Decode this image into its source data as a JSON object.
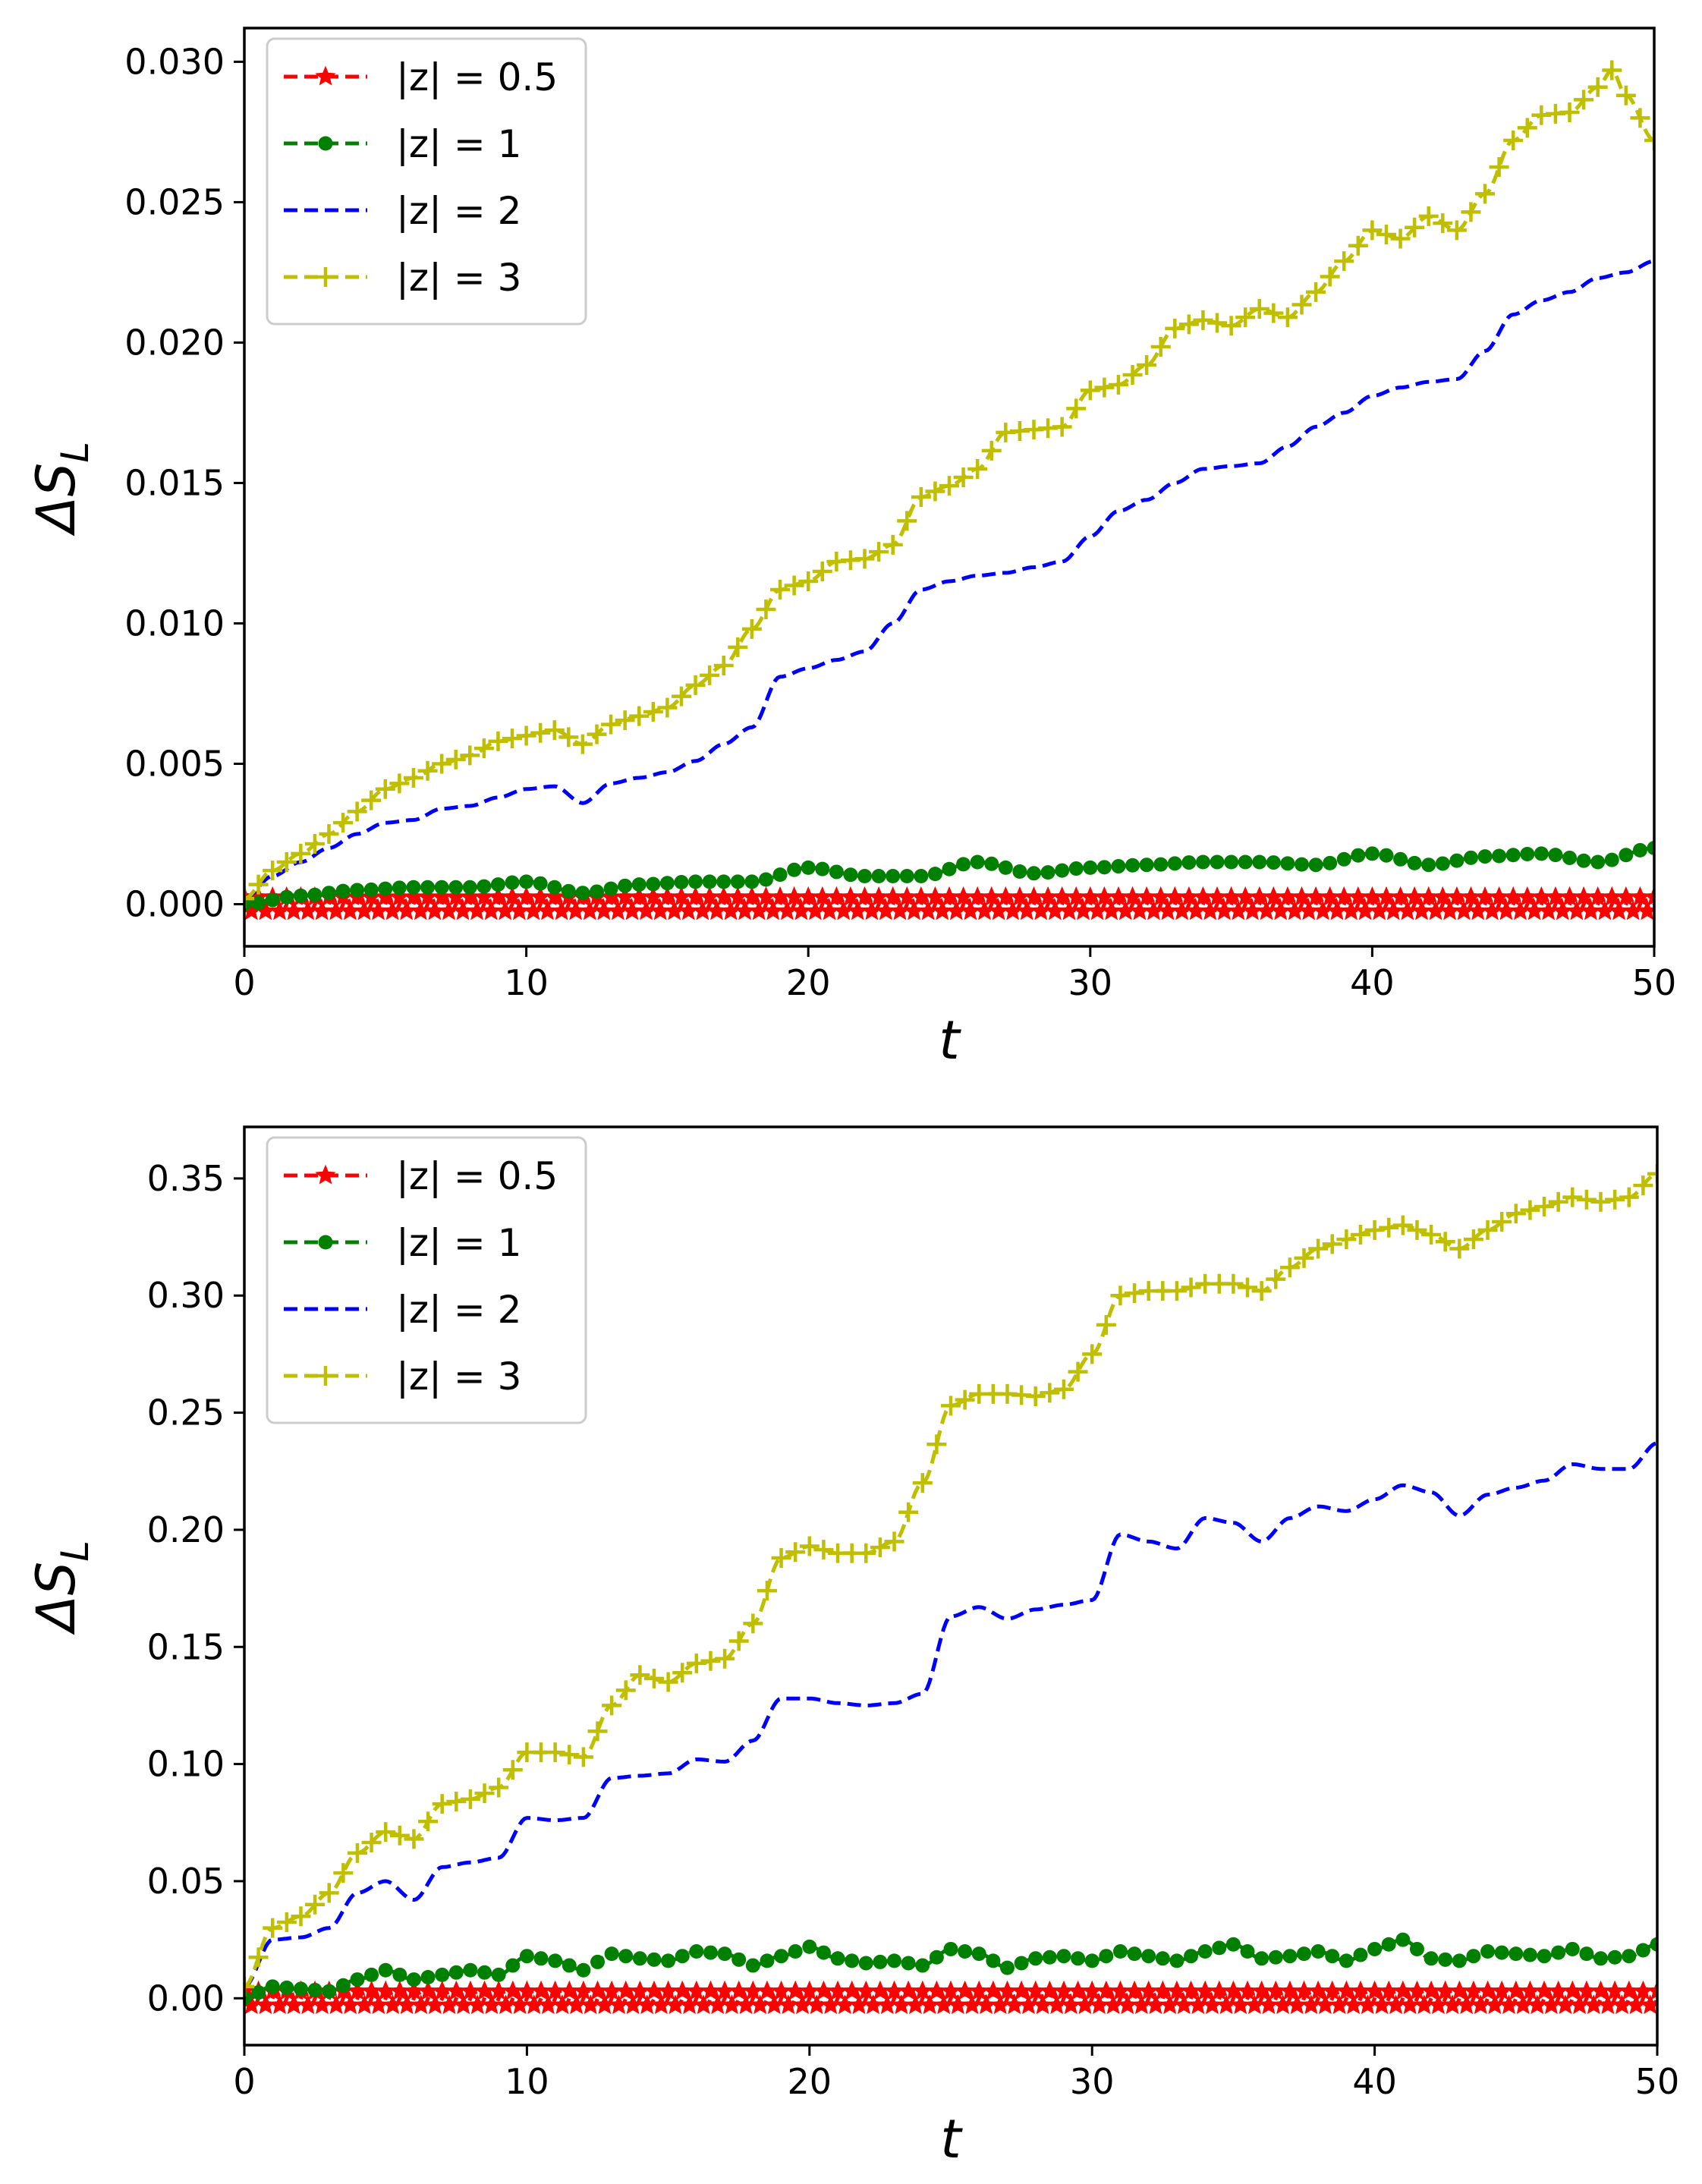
{
  "chart_data": [
    {
      "id": "top",
      "type": "line",
      "title": "",
      "xlabel": "t",
      "ylabel": "ΔS_L",
      "ylabel_main": "ΔS",
      "ylabel_sub": "L",
      "xlim": [
        0,
        50
      ],
      "ylim": [
        -0.0015,
        0.0312
      ],
      "xticks": [
        0,
        10,
        20,
        30,
        40,
        50
      ],
      "xtick_labels": [
        "0",
        "10",
        "20",
        "30",
        "40",
        "50"
      ],
      "yticks": [
        0.0,
        0.005,
        0.01,
        0.015,
        0.02,
        0.025,
        0.03
      ],
      "ytick_labels": [
        "0.000",
        "0.005",
        "0.010",
        "0.015",
        "0.020",
        "0.025",
        "0.030"
      ],
      "grid": false,
      "legend_position": "upper-left",
      "series": [
        {
          "name": "|z| = 0.5",
          "color": "#ff0000",
          "marker": "star",
          "style": "dashed",
          "x": [
            0,
            5,
            10,
            15,
            20,
            25,
            30,
            35,
            40,
            45,
            50
          ],
          "y": [
            0,
            0,
            0,
            0,
            0,
            0,
            0,
            0,
            0,
            0,
            0
          ],
          "oscillation": 0.00025
        },
        {
          "name": "|z| = 1",
          "color": "#008000",
          "marker": "circle",
          "style": "dashed",
          "x": [
            0,
            2,
            4,
            6,
            8,
            10,
            12,
            14,
            16,
            18,
            20,
            22,
            24,
            26,
            28,
            30,
            32,
            34,
            36,
            38,
            40,
            42,
            44,
            46,
            48,
            50
          ],
          "y": [
            0.0,
            0.0003,
            0.0005,
            0.0006,
            0.0006,
            0.0008,
            0.0004,
            0.0007,
            0.0008,
            0.0008,
            0.0013,
            0.001,
            0.001,
            0.0015,
            0.0011,
            0.0013,
            0.0014,
            0.0015,
            0.0015,
            0.0014,
            0.0018,
            0.0014,
            0.0017,
            0.0018,
            0.0015,
            0.002
          ],
          "oscillation": 0
        },
        {
          "name": "|z| = 2",
          "color": "#0000ff",
          "marker": "none",
          "style": "dashed",
          "x": [
            0,
            1,
            2,
            3,
            4,
            5,
            6,
            7,
            8,
            9,
            10,
            11,
            12,
            13,
            14,
            15,
            16,
            17,
            18,
            19,
            20,
            21,
            22,
            23,
            24,
            25,
            26,
            27,
            28,
            29,
            30,
            31,
            32,
            33,
            34,
            35,
            36,
            37,
            38,
            39,
            40,
            41,
            42,
            43,
            44,
            45,
            46,
            47,
            48,
            49,
            50
          ],
          "y": [
            0.0002,
            0.001,
            0.0015,
            0.002,
            0.0025,
            0.0029,
            0.003,
            0.0034,
            0.0035,
            0.0038,
            0.0041,
            0.0042,
            0.0036,
            0.0043,
            0.0045,
            0.0047,
            0.0051,
            0.0057,
            0.0063,
            0.0081,
            0.0084,
            0.0087,
            0.009,
            0.01,
            0.0112,
            0.0115,
            0.0117,
            0.0118,
            0.012,
            0.0122,
            0.0131,
            0.014,
            0.0144,
            0.015,
            0.0155,
            0.0156,
            0.0157,
            0.0163,
            0.017,
            0.0175,
            0.0181,
            0.0184,
            0.0186,
            0.0187,
            0.0197,
            0.021,
            0.0215,
            0.0218,
            0.0223,
            0.0225,
            0.0229
          ],
          "oscillation": 0
        },
        {
          "name": "|z| = 3",
          "color": "#bfbf00",
          "marker": "plus",
          "style": "dashed",
          "x": [
            0,
            1,
            2,
            3,
            4,
            5,
            6,
            7,
            8,
            9,
            10,
            11,
            12,
            13,
            14,
            15,
            16,
            17,
            18,
            19,
            20,
            21,
            22,
            23,
            24,
            25,
            26,
            27,
            28,
            29,
            30,
            31,
            32,
            33,
            34,
            35,
            36,
            37,
            38,
            39,
            40,
            41,
            42,
            43,
            44,
            45,
            46,
            47,
            48,
            48.5,
            49,
            50
          ],
          "y": [
            0.0002,
            0.0012,
            0.0018,
            0.0025,
            0.0033,
            0.0041,
            0.0045,
            0.005,
            0.0053,
            0.0058,
            0.006,
            0.0062,
            0.0057,
            0.0064,
            0.0067,
            0.007,
            0.0078,
            0.0085,
            0.0098,
            0.0112,
            0.0115,
            0.0122,
            0.0123,
            0.0128,
            0.0145,
            0.0149,
            0.0155,
            0.0168,
            0.0169,
            0.017,
            0.0183,
            0.0185,
            0.0192,
            0.0205,
            0.0208,
            0.0206,
            0.0212,
            0.0209,
            0.0218,
            0.0229,
            0.024,
            0.0237,
            0.0245,
            0.024,
            0.0253,
            0.0272,
            0.0281,
            0.0282,
            0.0291,
            0.0297,
            0.0288,
            0.0272
          ],
          "oscillation": 0
        }
      ]
    },
    {
      "id": "bottom",
      "type": "line",
      "title": "",
      "xlabel": "t",
      "ylabel": "ΔS_L",
      "ylabel_main": "ΔS",
      "ylabel_sub": "L",
      "xlim": [
        0,
        50
      ],
      "ylim": [
        -0.02,
        0.372
      ],
      "xticks": [
        0,
        10,
        20,
        30,
        40,
        50
      ],
      "xtick_labels": [
        "0",
        "10",
        "20",
        "30",
        "40",
        "50"
      ],
      "yticks": [
        0.0,
        0.05,
        0.1,
        0.15,
        0.2,
        0.25,
        0.3,
        0.35
      ],
      "ytick_labels": [
        "0.00",
        "0.05",
        "0.10",
        "0.15",
        "0.20",
        "0.25",
        "0.30",
        "0.35"
      ],
      "grid": false,
      "legend_position": "upper-left",
      "series": [
        {
          "name": "|z| = 0.5",
          "color": "#ff0000",
          "marker": "star",
          "style": "dashed",
          "x": [
            0,
            5,
            10,
            15,
            20,
            25,
            30,
            35,
            40,
            45,
            50
          ],
          "y": [
            0,
            0,
            0,
            0,
            0,
            0,
            0,
            0,
            0,
            0,
            0
          ],
          "oscillation": 0.003
        },
        {
          "name": "|z| = 1",
          "color": "#008000",
          "marker": "circle",
          "style": "dashed",
          "x": [
            0,
            1,
            2,
            3,
            4,
            5,
            6,
            7,
            8,
            9,
            10,
            11,
            12,
            13,
            14,
            15,
            16,
            17,
            18,
            19,
            20,
            21,
            22,
            23,
            24,
            25,
            26,
            27,
            28,
            29,
            30,
            31,
            32,
            33,
            34,
            35,
            36,
            37,
            38,
            39,
            40,
            41,
            42,
            43,
            44,
            45,
            46,
            47,
            48,
            49,
            50
          ],
          "y": [
            0.0,
            0.005,
            0.004,
            0.003,
            0.008,
            0.012,
            0.008,
            0.01,
            0.012,
            0.01,
            0.018,
            0.016,
            0.012,
            0.019,
            0.017,
            0.016,
            0.02,
            0.019,
            0.014,
            0.018,
            0.022,
            0.017,
            0.015,
            0.016,
            0.014,
            0.021,
            0.019,
            0.013,
            0.017,
            0.018,
            0.016,
            0.02,
            0.018,
            0.016,
            0.02,
            0.023,
            0.017,
            0.018,
            0.02,
            0.016,
            0.021,
            0.025,
            0.017,
            0.016,
            0.02,
            0.019,
            0.018,
            0.021,
            0.017,
            0.018,
            0.023
          ],
          "oscillation": 0
        },
        {
          "name": "|z| = 2",
          "color": "#0000ff",
          "marker": "none",
          "style": "dashed",
          "x": [
            0,
            1,
            2,
            3,
            4,
            5,
            6,
            7,
            8,
            9,
            10,
            11,
            12,
            13,
            14,
            15,
            16,
            17,
            18,
            19,
            20,
            21,
            22,
            23,
            24,
            25,
            26,
            27,
            28,
            29,
            30,
            31,
            32,
            33,
            34,
            35,
            36,
            37,
            38,
            39,
            40,
            41,
            42,
            43,
            44,
            45,
            46,
            47,
            48,
            49,
            50
          ],
          "y": [
            0.005,
            0.025,
            0.026,
            0.03,
            0.045,
            0.05,
            0.042,
            0.056,
            0.058,
            0.06,
            0.077,
            0.076,
            0.077,
            0.094,
            0.095,
            0.096,
            0.102,
            0.101,
            0.11,
            0.128,
            0.128,
            0.126,
            0.125,
            0.126,
            0.13,
            0.163,
            0.167,
            0.162,
            0.166,
            0.168,
            0.17,
            0.198,
            0.195,
            0.192,
            0.205,
            0.203,
            0.195,
            0.205,
            0.21,
            0.208,
            0.213,
            0.219,
            0.216,
            0.206,
            0.215,
            0.218,
            0.221,
            0.228,
            0.226,
            0.226,
            0.237
          ],
          "oscillation": 0
        },
        {
          "name": "|z| = 3",
          "color": "#bfbf00",
          "marker": "plus",
          "style": "dashed",
          "x": [
            0,
            1,
            2,
            3,
            4,
            5,
            6,
            7,
            8,
            9,
            10,
            11,
            12,
            13,
            14,
            15,
            16,
            17,
            18,
            19,
            20,
            21,
            22,
            23,
            24,
            25,
            26,
            27,
            28,
            29,
            30,
            31,
            32,
            33,
            34,
            35,
            36,
            37,
            38,
            39,
            40,
            41,
            42,
            43,
            44,
            45,
            46,
            47,
            48,
            49,
            50
          ],
          "y": [
            0.005,
            0.03,
            0.035,
            0.045,
            0.062,
            0.071,
            0.068,
            0.083,
            0.085,
            0.09,
            0.105,
            0.105,
            0.103,
            0.125,
            0.138,
            0.135,
            0.143,
            0.145,
            0.16,
            0.188,
            0.193,
            0.19,
            0.19,
            0.195,
            0.22,
            0.253,
            0.258,
            0.258,
            0.257,
            0.26,
            0.275,
            0.3,
            0.302,
            0.302,
            0.305,
            0.305,
            0.302,
            0.312,
            0.32,
            0.324,
            0.328,
            0.33,
            0.326,
            0.32,
            0.328,
            0.335,
            0.338,
            0.342,
            0.34,
            0.342,
            0.352
          ],
          "oscillation": 0
        }
      ]
    }
  ]
}
